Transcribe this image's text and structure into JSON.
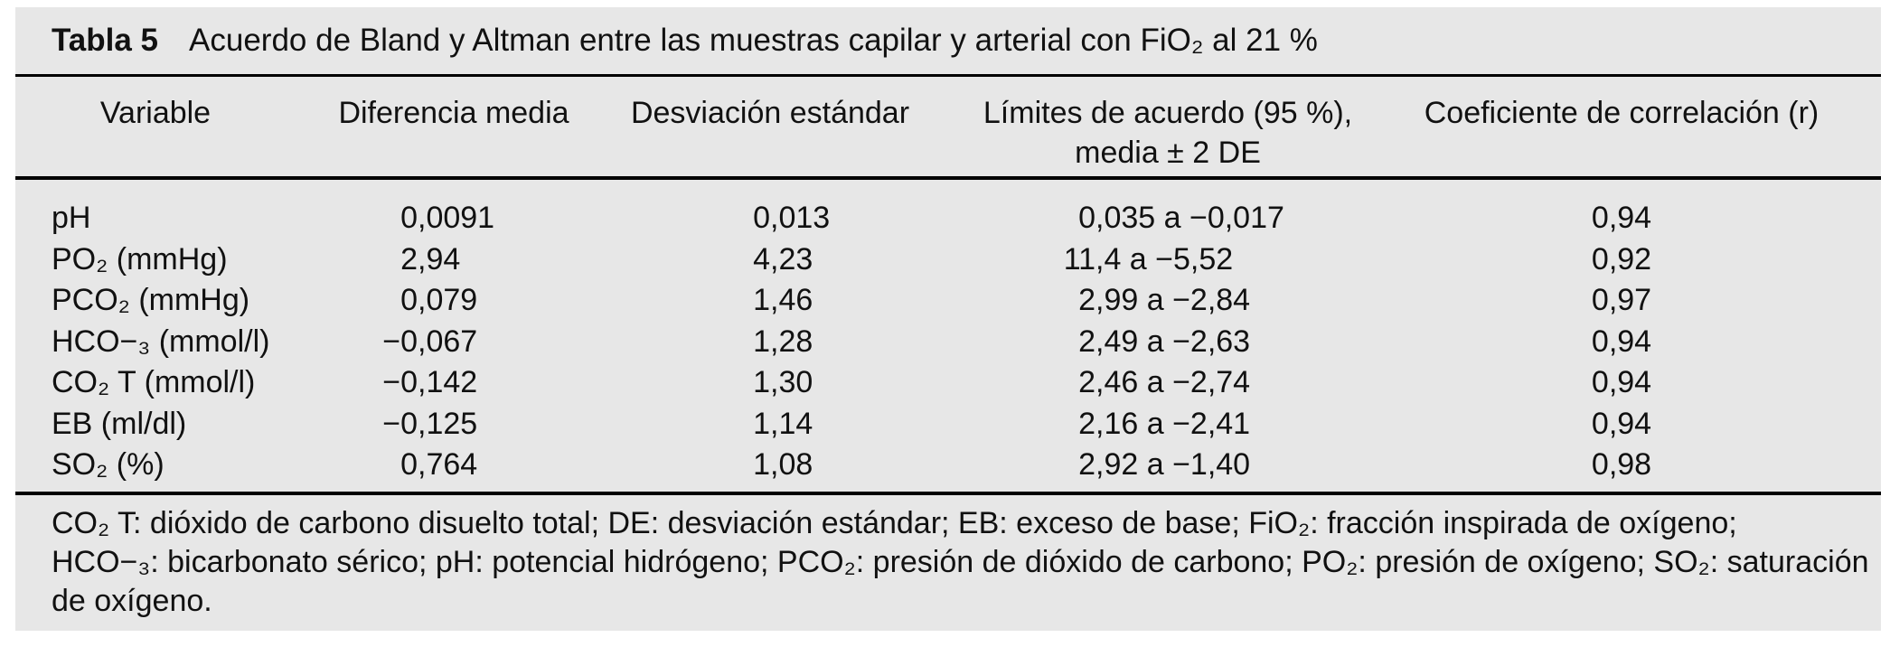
{
  "table": {
    "title_label": "Tabla 5",
    "title_text": "Acuerdo de Bland y Altman entre las muestras capilar y arterial con FiO₂ al 21 %",
    "columns": [
      "Variable",
      "Diferencia media",
      "Desviación estándar",
      "Límites de acuerdo (95 %),\nmedia ± 2 DE",
      "Coeficiente de correlación (r)"
    ],
    "rows": [
      {
        "variable": "pH",
        "diferencia_media": "0,0091",
        "desviacion_estandar": "0,013",
        "limites_acuerdo": "0,035 a −0,017",
        "coeficiente_r": "0,94"
      },
      {
        "variable": "PO₂ (mmHg)",
        "diferencia_media": "2,94",
        "desviacion_estandar": "4,23",
        "limites_acuerdo": "11,4 a −5,52",
        "coeficiente_r": "0,92"
      },
      {
        "variable": "PCO₂ (mmHg)",
        "diferencia_media": "0,079",
        "desviacion_estandar": "1,46",
        "limites_acuerdo": "2,99 a −2,84",
        "coeficiente_r": "0,97"
      },
      {
        "variable": "HCO−₃ (mmol/l)",
        "diferencia_media": "−0,067",
        "desviacion_estandar": "1,28",
        "limites_acuerdo": "2,49 a −2,63",
        "coeficiente_r": "0,94"
      },
      {
        "variable": "CO₂ T (mmol/l)",
        "diferencia_media": "−0,142",
        "desviacion_estandar": "1,30",
        "limites_acuerdo": "2,46 a −2,74",
        "coeficiente_r": "0,94"
      },
      {
        "variable": "EB (ml/dl)",
        "diferencia_media": "−0,125",
        "desviacion_estandar": "1,14",
        "limites_acuerdo": "2,16 a −2,41",
        "coeficiente_r": "0,94"
      },
      {
        "variable": "SO₂ (%)",
        "diferencia_media": "0,764",
        "desviacion_estandar": "1,08",
        "limites_acuerdo": "2,92 a −1,40",
        "coeficiente_r": "0,98"
      }
    ],
    "footnote_lines": [
      "CO₂ T: dióxido de carbono disuelto total; DE: desviación estándar; EB: exceso de base; FiO₂: fracción inspirada de oxígeno;",
      "HCO−₃: bicarbonato sérico; pH: potencial hidrógeno; PCO₂: presión de dióxido de carbono; PO₂: presión de oxígeno; SO₂: saturación",
      "de oxígeno."
    ],
    "colors": {
      "panel_bg": "#e7e7e7",
      "text": "#111111",
      "rule": "#000000"
    }
  }
}
